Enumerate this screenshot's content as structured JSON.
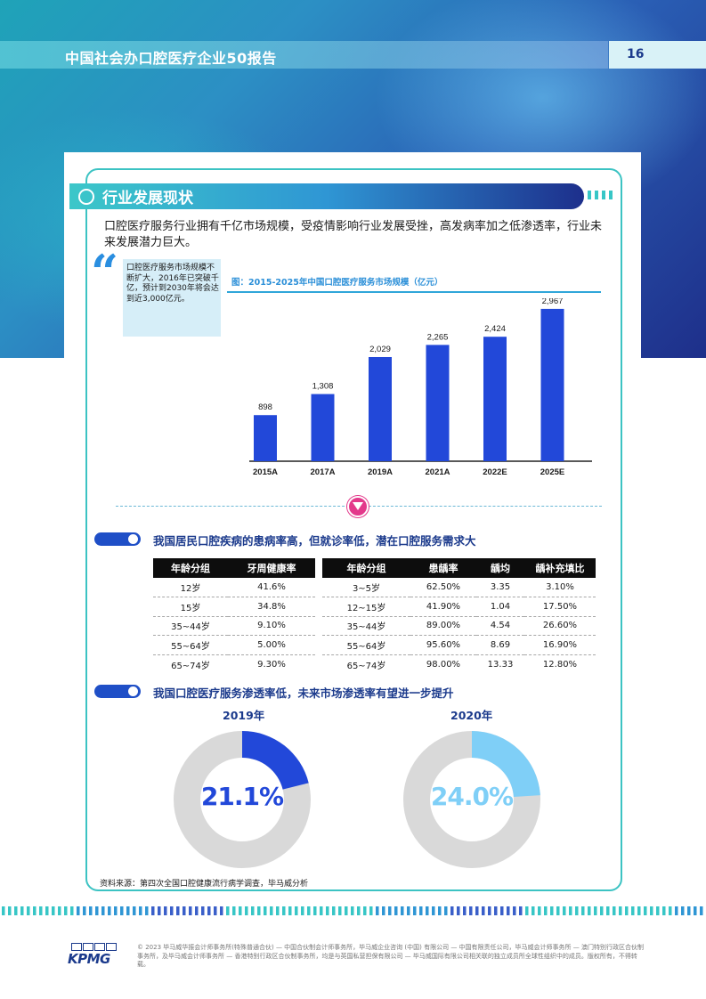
{
  "header": {
    "title": "中国社会办口腔医疗企业50报告",
    "page_number": "16"
  },
  "section": {
    "title": "行业发展现状"
  },
  "intro": "口腔医疗服务行业拥有千亿市场规模，受疫情影响行业发展受挫，高发病率加之低渗透率，行业未来发展潜力巨大。",
  "quote": {
    "text": "口腔医疗服务市场规模不断扩大，2016年已突破千亿，预计到2030年将会达到近3,000亿元。"
  },
  "chart_data": {
    "type": "bar",
    "title": "图：2015-2025年中国口腔医疗服务市场规模（亿元）",
    "categories": [
      "2015A",
      "2017A",
      "2019A",
      "2021A",
      "2022E",
      "2025E"
    ],
    "values": [
      898,
      1308,
      2029,
      2265,
      2424,
      2967
    ],
    "value_labels": [
      "898",
      "1,308",
      "2,029",
      "2,265",
      "2,424",
      "2,967"
    ],
    "ylim": [
      0,
      3000
    ],
    "color": "#2248d9",
    "grid": false
  },
  "prevalence": {
    "heading": "我国居民口腔疾病的患病率高，但就诊率低，潜在口腔服务需求大",
    "table_left": {
      "headers": [
        "年龄分组",
        "牙周健康率"
      ],
      "rows": [
        [
          "12岁",
          "41.6%"
        ],
        [
          "15岁",
          "34.8%"
        ],
        [
          "35~44岁",
          "9.10%"
        ],
        [
          "55~64岁",
          "5.00%"
        ],
        [
          "65~74岁",
          "9.30%"
        ]
      ]
    },
    "table_right": {
      "headers": [
        "年龄分组",
        "患龋率",
        "龋均",
        "龋补充填比"
      ],
      "rows": [
        [
          "3~5岁",
          "62.50%",
          "3.35",
          "3.10%"
        ],
        [
          "12~15岁",
          "41.90%",
          "1.04",
          "17.50%"
        ],
        [
          "35~44岁",
          "89.00%",
          "4.54",
          "26.60%"
        ],
        [
          "55~64岁",
          "95.60%",
          "8.69",
          "16.90%"
        ],
        [
          "65~74岁",
          "98.00%",
          "13.33",
          "12.80%"
        ]
      ]
    }
  },
  "penetration": {
    "heading": "我国口腔医疗服务渗透率低，未来市场渗透率有望进一步提升",
    "donuts": [
      {
        "year": "2019年",
        "value_label": "21.1%",
        "fraction": 0.211,
        "color": "#2248d9"
      },
      {
        "year": "2020年",
        "value_label": "24.0%",
        "fraction": 0.24,
        "color": "#7fcff7"
      }
    ]
  },
  "source": "资料来源：第四次全国口腔健康流行病学调查，毕马威分析",
  "footer": {
    "logo": "KPMG",
    "legal": "© 2023 毕马威华振会计师事务所(特殊普通合伙) — 中国合伙制会计师事务所，毕马威企业咨询 (中国) 有限公司 — 中国有限责任公司，毕马威会计师事务所 — 澳门特别行政区合伙制事务所，及毕马威会计师事务所 — 香港特别行政区合伙制事务所，均是与英国私营担保有限公司 — 毕马威国际有限公司相关联的独立成员所全球性组织中的成员。版权所有，不得转载。"
  }
}
